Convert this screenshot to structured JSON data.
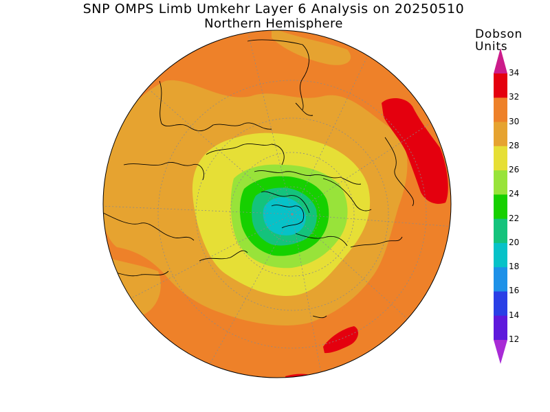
{
  "title": "SNP OMPS Limb Umkehr Layer 6 Analysis on 20250510",
  "subtitle": "Northern Hemisphere",
  "units_line1": "Dobson",
  "units_line2": "Units",
  "colorbar": {
    "labels": [
      "34",
      "32",
      "30",
      "28",
      "26",
      "24",
      "22",
      "20",
      "18",
      "16",
      "14",
      "12"
    ],
    "bands": [
      {
        "range": "32-34",
        "color": "#e4000e"
      },
      {
        "range": "30-32",
        "color": "#ee8129"
      },
      {
        "range": "28-30",
        "color": "#e6a330"
      },
      {
        "range": "26-28",
        "color": "#e6df36"
      },
      {
        "range": "24-26",
        "color": "#98e33a"
      },
      {
        "range": "22-24",
        "color": "#16d000"
      },
      {
        "range": "20-22",
        "color": "#14c37c"
      },
      {
        "range": "18-20",
        "color": "#07c2c8"
      },
      {
        "range": "16-18",
        "color": "#1e91e8"
      },
      {
        "range": "14-16",
        "color": "#2a3fe6"
      },
      {
        "range": "12-14",
        "color": "#5e19dc"
      }
    ],
    "over_color": "#cc1c8a",
    "under_color": "#a82bd6"
  },
  "map": {
    "projection": "north polar stereographic",
    "background_color": "#ee8129",
    "grid": "dotted gray lat/lon"
  }
}
